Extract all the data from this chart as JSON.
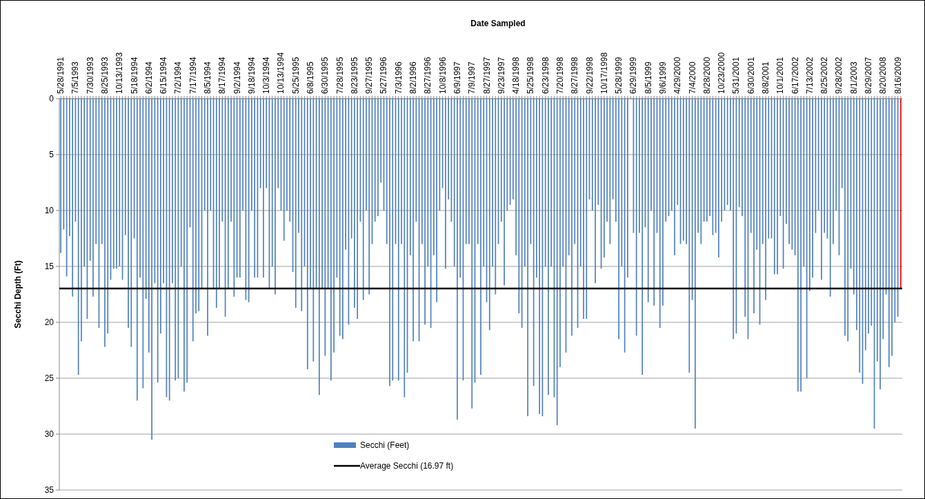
{
  "chart_data": {
    "type": "bar",
    "xlabel": "Date Sampled",
    "ylabel": "Secchi Depth (Ft)",
    "categories": [
      "5/28/1991",
      null,
      null,
      null,
      null,
      "7/5/1993",
      null,
      null,
      null,
      null,
      "7/30/1993",
      null,
      null,
      null,
      null,
      "8/25/1993",
      null,
      null,
      null,
      null,
      "10/13/1993",
      null,
      null,
      null,
      null,
      "5/18/1994",
      null,
      null,
      null,
      null,
      "6/2/1994",
      null,
      null,
      null,
      null,
      "6/15/1994",
      null,
      null,
      null,
      null,
      "7/2/1994",
      null,
      null,
      null,
      null,
      "7/17/1994",
      null,
      null,
      null,
      null,
      "8/5/1994",
      null,
      null,
      null,
      null,
      "8/17/1994",
      null,
      null,
      null,
      null,
      "9/2/1994",
      null,
      null,
      null,
      null,
      "9/18/1994",
      null,
      null,
      null,
      null,
      "10/3/1994",
      null,
      null,
      null,
      null,
      "10/13/1994",
      null,
      null,
      null,
      null,
      "5/25/1995",
      null,
      null,
      null,
      null,
      "6/8/1995",
      null,
      null,
      null,
      null,
      "6/30/1995",
      null,
      null,
      null,
      null,
      "7/28/1995",
      null,
      null,
      null,
      null,
      "8/23/1995",
      null,
      null,
      null,
      null,
      "9/27/1995",
      null,
      null,
      null,
      null,
      "5/27/1996",
      null,
      null,
      null,
      null,
      "7/3/1996",
      null,
      null,
      null,
      null,
      "8/2/1996",
      null,
      null,
      null,
      null,
      "8/27/1996",
      null,
      null,
      null,
      null,
      "10/8/1996",
      null,
      null,
      null,
      null,
      "6/9/1997",
      null,
      null,
      null,
      null,
      "7/9/1997",
      null,
      null,
      null,
      null,
      "8/27/1997",
      null,
      null,
      null,
      null,
      "9/23/1997",
      null,
      null,
      null,
      null,
      "4/18/1998",
      null,
      null,
      null,
      null,
      "5/25/1998",
      null,
      null,
      null,
      null,
      "6/23/1998",
      null,
      null,
      null,
      null,
      "7/20/1998",
      null,
      null,
      null,
      null,
      "8/27/1998",
      null,
      null,
      null,
      null,
      "9/22/1998",
      null,
      null,
      null,
      null,
      "10/17/1998",
      null,
      null,
      null,
      null,
      "5/28/1999",
      null,
      null,
      null,
      null,
      "6/29/1999",
      null,
      null,
      null,
      null,
      "8/5/1999",
      null,
      null,
      null,
      null,
      "9/6/1999",
      null,
      null,
      null,
      null,
      "4/29/2000",
      null,
      null,
      null,
      null,
      "7/4/2000",
      null,
      null,
      null,
      null,
      "8/28/2000",
      null,
      null,
      null,
      null,
      "10/23/2000",
      null,
      null,
      null,
      null,
      "5/31/2001",
      null,
      null,
      null,
      null,
      "6/30/2001",
      null,
      null,
      null,
      null,
      "8/8/2001",
      null,
      null,
      null,
      null,
      "10/1/2001",
      null,
      null,
      null,
      null,
      "6/17/2002",
      null,
      null,
      null,
      null,
      "7/13/2002",
      null,
      null,
      null,
      null,
      "8/25/2002",
      null,
      null,
      null,
      null,
      "9/28/2002",
      null,
      null,
      null,
      null,
      "8/1/2003",
      null,
      null,
      null,
      null,
      "8/29/2007",
      null,
      null,
      null,
      null,
      "8/20/2008",
      null,
      null,
      null,
      null,
      "8/16/2009",
      null
    ],
    "series": [
      {
        "name": "Secchi (Feet)",
        "color": "#4f81bd",
        "colors": [
          "#4f81bd",
          "#4f81bd",
          "#4f81bd",
          "#4f81bd",
          "#4f81bd",
          "#4f81bd",
          "#4f81bd",
          "#4f81bd",
          "#4f81bd",
          "#4f81bd",
          "#4f81bd",
          "#4f81bd",
          "#4f81bd",
          "#4f81bd",
          "#4f81bd",
          "#4f81bd",
          "#4f81bd",
          "#4f81bd",
          "#4f81bd",
          "#4f81bd",
          "#4f81bd",
          "#4f81bd",
          "#4f81bd",
          "#4f81bd",
          "#4f81bd",
          "#4f81bd",
          "#4f81bd",
          "#4f81bd",
          "#4f81bd",
          "#4f81bd",
          "#4f81bd",
          "#4f81bd",
          "#4f81bd",
          "#4f81bd",
          "#4f81bd",
          "#4f81bd",
          "#4f81bd",
          "#4f81bd",
          "#4f81bd",
          "#4f81bd",
          "#4f81bd",
          "#4f81bd",
          "#4f81bd",
          "#4f81bd",
          "#4f81bd",
          "#4f81bd",
          "#4f81bd",
          "#4f81bd",
          "#4f81bd",
          "#4f81bd",
          "#4f81bd",
          "#4f81bd",
          "#4f81bd",
          "#4f81bd",
          "#4f81bd",
          "#4f81bd",
          "#4f81bd",
          "#4f81bd",
          "#4f81bd",
          "#4f81bd",
          "#4f81bd",
          "#4f81bd",
          "#4f81bd",
          "#4f81bd",
          "#4f81bd",
          "#4f81bd",
          "#4f81bd",
          "#4f81bd",
          "#4f81bd",
          "#4f81bd",
          "#4f81bd",
          "#4f81bd",
          "#4f81bd",
          "#4f81bd",
          "#4f81bd",
          "#4f81bd",
          "#4f81bd",
          "#4f81bd",
          "#4f81bd",
          "#4f81bd",
          "#4f81bd",
          "#4f81bd",
          "#4f81bd",
          "#4f81bd",
          "#4f81bd",
          "#4f81bd",
          "#4f81bd",
          "#4f81bd",
          "#4f81bd",
          "#4f81bd",
          "#4f81bd",
          "#4f81bd",
          "#4f81bd",
          "#4f81bd",
          "#4f81bd",
          "#4f81bd",
          "#4f81bd",
          "#4f81bd",
          "#4f81bd",
          "#4f81bd",
          "#4f81bd",
          "#4f81bd",
          "#4f81bd",
          "#4f81bd",
          "#4f81bd",
          "#4f81bd",
          "#4f81bd",
          "#4f81bd",
          "#4f81bd",
          "#4f81bd",
          "#4f81bd",
          "#4f81bd",
          "#4f81bd",
          "#4f81bd",
          "#4f81bd",
          "#4f81bd",
          "#4f81bd",
          "#4f81bd",
          "#4f81bd",
          "#4f81bd",
          "#4f81bd",
          "#4f81bd",
          "#4f81bd",
          "#4f81bd",
          "#4f81bd",
          "#4f81bd",
          "#4f81bd",
          "#4f81bd",
          "#4f81bd",
          "#4f81bd",
          "#4f81bd",
          "#4f81bd",
          "#4f81bd",
          "#4f81bd",
          "#4f81bd",
          "#4f81bd",
          "#4f81bd",
          "#4f81bd",
          "#4f81bd",
          "#4f81bd",
          "#4f81bd",
          "#4f81bd",
          "#4f81bd",
          "#4f81bd",
          "#4f81bd",
          "#4f81bd",
          "#4f81bd",
          "#4f81bd",
          "#4f81bd",
          "#4f81bd",
          "#4f81bd",
          "#4f81bd",
          "#4f81bd",
          "#4f81bd",
          "#4f81bd",
          "#4f81bd",
          "#4f81bd",
          "#4f81bd",
          "#4f81bd",
          "#4f81bd",
          "#4f81bd",
          "#4f81bd",
          "#4f81bd",
          "#4f81bd",
          "#4f81bd",
          "#4f81bd",
          "#4f81bd",
          "#4f81bd",
          "#4f81bd",
          "#4f81bd",
          "#4f81bd",
          "#4f81bd",
          "#4f81bd",
          "#4f81bd",
          "#4f81bd",
          "#4f81bd",
          "#4f81bd",
          "#4f81bd",
          "#4f81bd",
          "#4f81bd",
          "#4f81bd",
          "#4f81bd",
          "#4f81bd",
          "#4f81bd",
          "#4f81bd",
          "#4f81bd",
          "#4f81bd",
          "#4f81bd",
          "#4f81bd",
          "#4f81bd",
          "#4f81bd",
          "#4f81bd",
          "#4f81bd",
          "#4f81bd",
          null,
          "#4f81bd",
          "#4f81bd",
          "#4f81bd",
          "#4f81bd",
          "#4f81bd",
          "#4f81bd",
          "#4f81bd",
          "#4f81bd",
          "#4f81bd",
          "#4f81bd",
          "#4f81bd",
          "#4f81bd",
          "#4f81bd",
          "#4f81bd",
          "#4f81bd",
          "#4f81bd",
          "#4f81bd",
          "#4f81bd",
          "#4f81bd",
          "#4f81bd",
          "#4f81bd",
          "#4f81bd",
          "#4f81bd",
          "#4f81bd",
          "#4f81bd",
          "#4f81bd",
          "#4f81bd",
          "#4f81bd",
          "#4f81bd",
          "#4f81bd",
          "#4f81bd",
          "#4f81bd",
          "#4f81bd",
          "#4f81bd",
          "#4f81bd",
          "#4f81bd",
          "#4f81bd",
          "#4f81bd",
          "#4f81bd",
          "#4f81bd",
          "#4f81bd",
          "#4f81bd",
          "#4f81bd",
          "#4f81bd",
          "#4f81bd",
          "#4f81bd",
          "#4f81bd",
          "#4f81bd",
          "#4f81bd",
          "#4f81bd",
          "#4f81bd",
          "#4f81bd",
          "#4f81bd",
          "#4f81bd",
          "#4f81bd",
          "#4f81bd",
          "#4f81bd",
          "#4f81bd",
          "#4f81bd",
          "#4f81bd",
          "#4f81bd",
          "#4f81bd",
          "#4f81bd",
          "#4f81bd",
          "#4f81bd",
          "#4f81bd",
          "#4f81bd",
          "#4f81bd",
          "#4f81bd",
          "#4f81bd",
          "#4f81bd",
          "#4f81bd",
          "#4f81bd",
          "#4f81bd",
          "#4f81bd",
          "#4f81bd",
          "#4f81bd",
          "#4f81bd",
          "#4f81bd",
          "#4f81bd",
          "#4f81bd",
          "#4f81bd",
          "#4f81bd",
          "#4f81bd",
          "#4f81bd",
          "#4f81bd",
          "#4f81bd",
          "#4f81bd",
          "#4f81bd",
          "#4f81bd",
          "#4f81bd",
          "#ff0000"
        ],
        "values": [
          13.8,
          11.7,
          15.9,
          12.3,
          17.7,
          11,
          24.7,
          21.7,
          15,
          19.7,
          14.5,
          17.7,
          13,
          20.5,
          13,
          22.2,
          21,
          16.2,
          15.2,
          15.2,
          15,
          16.2,
          12.2,
          20.5,
          22.2,
          12.5,
          27,
          16,
          25.9,
          17.9,
          22.7,
          30.5,
          16.5,
          25.4,
          21,
          16.5,
          26.7,
          27,
          16.5,
          25.2,
          25,
          15,
          26.2,
          25.4,
          11.5,
          21.7,
          19.2,
          19,
          17,
          10,
          21.2,
          10,
          17,
          18.7,
          17,
          11,
          19.5,
          17,
          11,
          17.7,
          16,
          16,
          10,
          18,
          18.2,
          10,
          16,
          16,
          8,
          16,
          8,
          17,
          15,
          17.5,
          8,
          10,
          12.7,
          10,
          11,
          15.5,
          18.7,
          12,
          19,
          15,
          24.2,
          17,
          23.5,
          17,
          26.5,
          17,
          23,
          17,
          25.2,
          22.7,
          16,
          21.2,
          21.5,
          13.5,
          20.2,
          12.5,
          18.7,
          19.7,
          11,
          18,
          10,
          17.5,
          13,
          11,
          10.5,
          7.5,
          10,
          13,
          25.7,
          25.2,
          13,
          25.2,
          13,
          26.7,
          24.5,
          14,
          21.7,
          11,
          21.7,
          13,
          20.2,
          15,
          20.5,
          14,
          18.2,
          10,
          8,
          15.2,
          9,
          11,
          15,
          28.7,
          16,
          25.2,
          13,
          13,
          27.7,
          25.4,
          13,
          24.7,
          15,
          18.2,
          20.7,
          15,
          17.5,
          13,
          11,
          16.7,
          10,
          9.5,
          9,
          14,
          19.2,
          20.5,
          15,
          28.4,
          13,
          25.7,
          16,
          28.2,
          28.4,
          15,
          26.5,
          15,
          26.7,
          29.2,
          24,
          15,
          22.7,
          14,
          21.2,
          13,
          20.5,
          15,
          19.7,
          19.7,
          9,
          10,
          16.5,
          9.5,
          15.2,
          14.2,
          11,
          13,
          9,
          11,
          21.5,
          15,
          22.7,
          16,
          null,
          12,
          21.2,
          12,
          24.7,
          11.5,
          18.2,
          10,
          18.5,
          12,
          20.5,
          18.5,
          11,
          10.5,
          10,
          14,
          9.5,
          13,
          12.7,
          13,
          24.5,
          18,
          29.5,
          12,
          13,
          11,
          11,
          10.5,
          12.2,
          12,
          14.2,
          11,
          10,
          9.5,
          10,
          21.5,
          21,
          9.7,
          10.5,
          19.5,
          21.5,
          12,
          19.2,
          13.5,
          20.2,
          13,
          18,
          12.5,
          12.5,
          15.7,
          15.7,
          10.5,
          15.2,
          11.2,
          13,
          13.5,
          14,
          26.2,
          26.2,
          15,
          25,
          17.2,
          16,
          12,
          10,
          16.2,
          12,
          12.5,
          17.7,
          13,
          10,
          14,
          8,
          21.2,
          21.7,
          15.2,
          17.5,
          20.7,
          24.5,
          25.5,
          22.5,
          21,
          20.3,
          29.5,
          23.5,
          26,
          21.5,
          17.5,
          24,
          23,
          20,
          19.5,
          17
        ]
      }
    ],
    "ylim": [
      35,
      0
    ],
    "yticks": [
      0,
      5,
      10,
      15,
      20,
      25,
      30,
      35
    ],
    "grid": "y",
    "legend": "bottom",
    "ref_lines": [
      {
        "axis": "y",
        "value": 16.97,
        "label": "Average Secchi (16.97 ft)",
        "color": "#000000"
      }
    ]
  }
}
